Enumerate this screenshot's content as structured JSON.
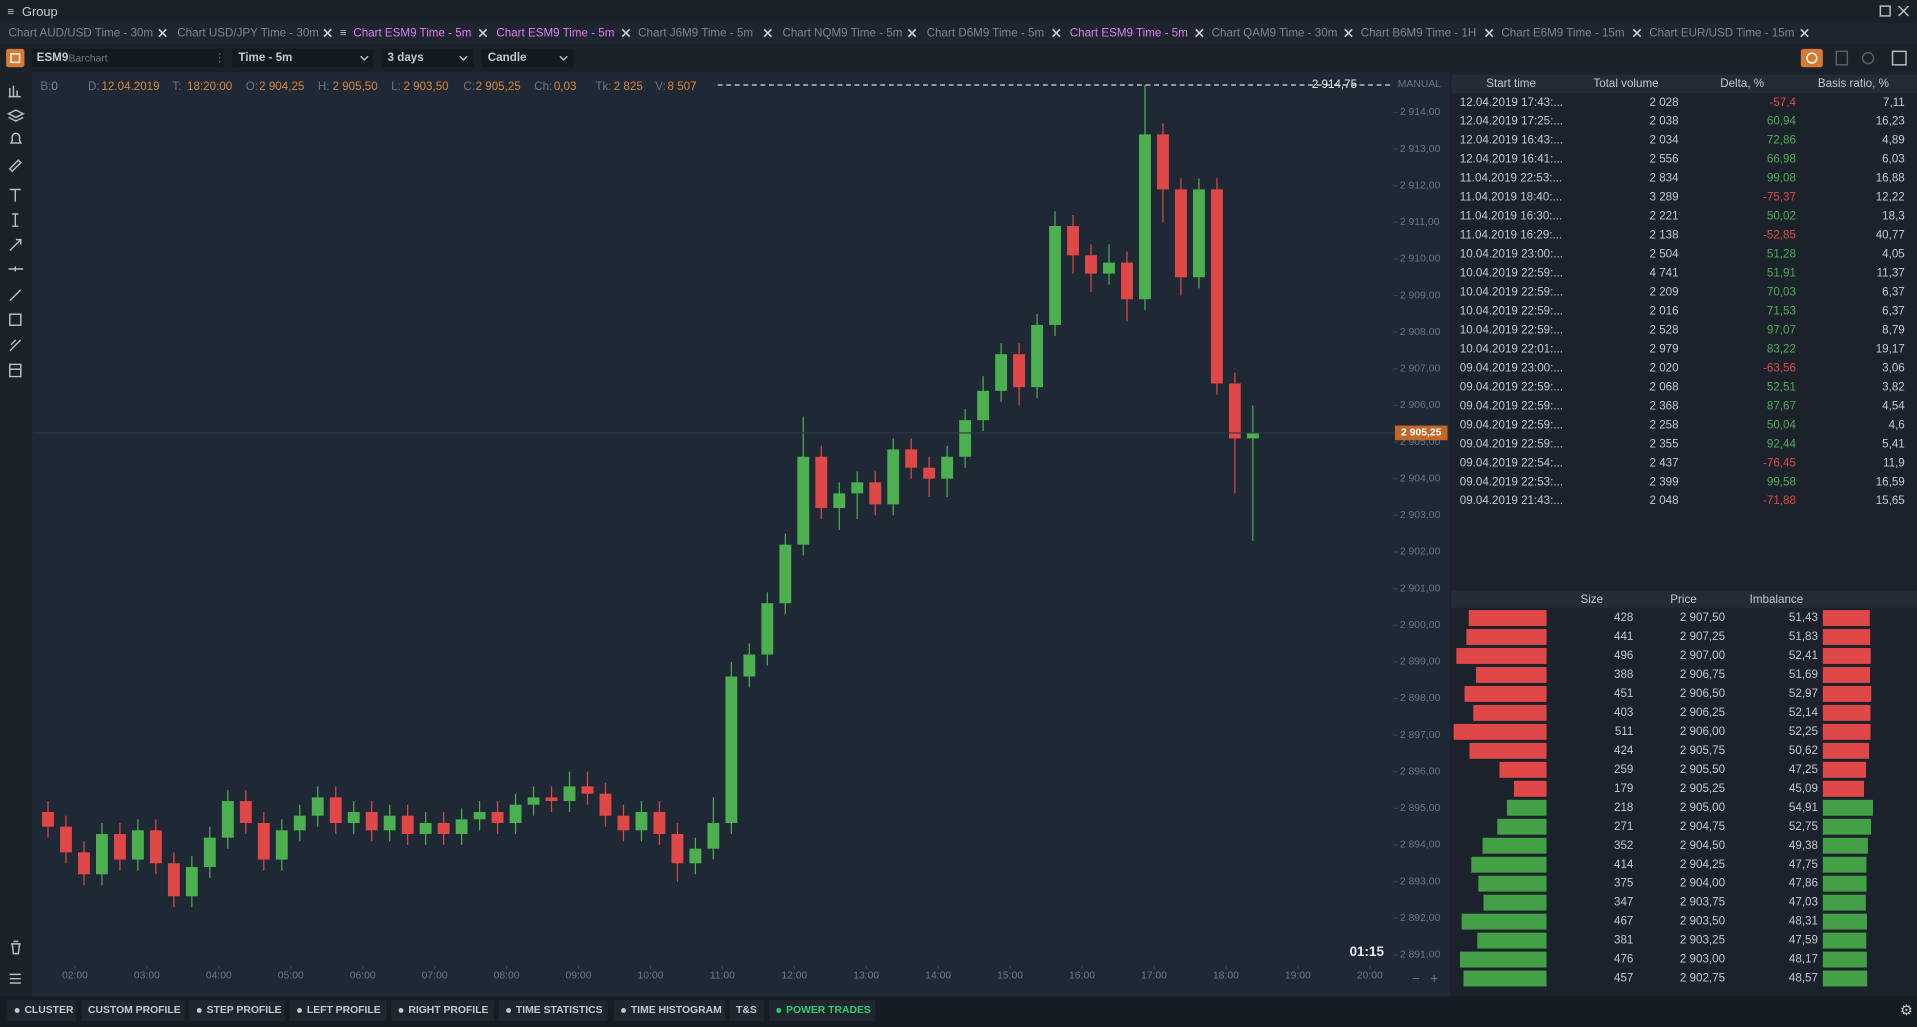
{
  "window": {
    "title": "Group"
  },
  "tabs": {
    "highlight_color": "#e07cf0",
    "items": [
      {
        "label": "Chart AUD/USD Time - 30m",
        "highlighted": false
      },
      {
        "label": "Chart USD/JPY Time - 30m",
        "highlighted": false
      },
      {
        "label": "Chart ESM9 Time - 5m",
        "highlighted": true
      },
      {
        "label": "Chart ESM9 Time - 5m",
        "highlighted": true
      },
      {
        "label": "Chart J6M9 Time - 5m",
        "highlighted": false
      },
      {
        "label": "Chart NQM9 Time - 5m",
        "highlighted": false
      },
      {
        "label": "Chart D6M9 Time - 5m",
        "highlighted": false
      },
      {
        "label": "Chart ESM9 Time - 5m",
        "highlighted": true
      },
      {
        "label": "Chart QAM9 Time - 30m",
        "highlighted": false
      },
      {
        "label": "Chart B6M9 Time - 1H",
        "highlighted": false
      },
      {
        "label": "Chart E6M9 Time - 15m",
        "highlighted": false
      },
      {
        "label": "Chart EUR/USD Time - 15m",
        "highlighted": false
      }
    ]
  },
  "toolbar": {
    "symbol": "ESM9",
    "source": "Barchart",
    "timeframe": "Time - 5m",
    "period": "3 days",
    "chart_type": "Candle"
  },
  "info_bar": [
    {
      "label": "B:",
      "value": "0"
    },
    {
      "label": "D:",
      "value": "12.04.2019"
    },
    {
      "label": "T:",
      "value": "18:20:00"
    },
    {
      "label": "O:",
      "value": "2 904,25"
    },
    {
      "label": "H:",
      "value": "2 905,50"
    },
    {
      "label": "L:",
      "value": "2 903,50"
    },
    {
      "label": "C:",
      "value": "2 905,25"
    },
    {
      "label": "Ch:",
      "value": "0,03"
    },
    {
      "label": "Tk:",
      "value": "2 825"
    },
    {
      "label": "V:",
      "value": "8 507"
    }
  ],
  "chart_data": {
    "type": "candlestick",
    "up_color": "#4caf50",
    "down_color": "#e04848",
    "ylim": [
      2890.7,
      2915.0
    ],
    "xlim": [
      "01:25",
      "20:20"
    ],
    "yticks": [
      {
        "value": 2891,
        "label": "2 891,00"
      },
      {
        "value": 2892,
        "label": "2 892,00"
      },
      {
        "value": 2893,
        "label": "2 893,00"
      },
      {
        "value": 2894,
        "label": "2 894,00"
      },
      {
        "value": 2895,
        "label": "2 895,00"
      },
      {
        "value": 2896,
        "label": "2 896,00"
      },
      {
        "value": 2897,
        "label": "2 897,00"
      },
      {
        "value": 2898,
        "label": "2 898,00"
      },
      {
        "value": 2899,
        "label": "2 899,00"
      },
      {
        "value": 2900,
        "label": "2 900,00"
      },
      {
        "value": 2901,
        "label": "2 901,00"
      },
      {
        "value": 2902,
        "label": "2 902,00"
      },
      {
        "value": 2903,
        "label": "2 903,00"
      },
      {
        "value": 2904,
        "label": "2 904,00"
      },
      {
        "value": 2905,
        "label": "2 905,00"
      },
      {
        "value": 2906,
        "label": "2 906,00"
      },
      {
        "value": 2907,
        "label": "2 907,00"
      },
      {
        "value": 2908,
        "label": "2 908,00"
      },
      {
        "value": 2909,
        "label": "2 909,00"
      },
      {
        "value": 2910,
        "label": "2 910,00"
      },
      {
        "value": 2911,
        "label": "2 911,00"
      },
      {
        "value": 2912,
        "label": "2 912,00"
      },
      {
        "value": 2913,
        "label": "2 913,00"
      },
      {
        "value": 2914,
        "label": "2 914,00"
      }
    ],
    "xticks": [
      "02:00",
      "03:00",
      "04:00",
      "05:00",
      "06:00",
      "07:00",
      "08:00",
      "09:00",
      "10:00",
      "11:00",
      "12:00",
      "13:00",
      "14:00",
      "15:00",
      "16:00",
      "17:00",
      "18:00",
      "19:00",
      "20:00"
    ],
    "x": [
      "01:30",
      "01:45",
      "02:00",
      "02:15",
      "02:30",
      "02:45",
      "03:00",
      "03:15",
      "03:30",
      "03:45",
      "04:00",
      "04:15",
      "04:30",
      "04:45",
      "05:00",
      "05:15",
      "05:30",
      "05:45",
      "06:00",
      "06:15",
      "06:30",
      "06:45",
      "07:00",
      "07:15",
      "07:30",
      "07:45",
      "08:00",
      "08:15",
      "08:30",
      "08:45",
      "09:00",
      "09:15",
      "09:30",
      "09:45",
      "10:00",
      "10:15",
      "10:30",
      "10:45",
      "11:00",
      "11:15",
      "11:30",
      "11:45",
      "12:00",
      "12:15",
      "12:30",
      "12:45",
      "13:00",
      "13:15",
      "13:30",
      "13:45",
      "14:00",
      "14:15",
      "14:30",
      "14:45",
      "15:00",
      "15:15",
      "15:30",
      "15:45",
      "16:00",
      "16:15",
      "16:30",
      "16:45",
      "17:00",
      "17:15",
      "17:30",
      "17:45",
      "18:00",
      "18:15"
    ],
    "open": [
      2894.9,
      2894.5,
      2893.8,
      2893.2,
      2894.3,
      2893.6,
      2894.4,
      2893.5,
      2892.6,
      2893.4,
      2894.2,
      2895.2,
      2894.6,
      2893.6,
      2894.4,
      2894.8,
      2895.3,
      2894.6,
      2894.9,
      2894.4,
      2894.8,
      2894.3,
      2894.6,
      2894.3,
      2894.7,
      2894.9,
      2894.6,
      2895.1,
      2895.3,
      2895.2,
      2895.6,
      2895.4,
      2894.8,
      2894.4,
      2894.9,
      2894.3,
      2893.5,
      2893.9,
      2894.6,
      2898.6,
      2899.2,
      2900.6,
      2902.2,
      2904.6,
      2903.2,
      2903.6,
      2903.9,
      2903.3,
      2904.8,
      2904.3,
      2904.0,
      2904.6,
      2905.6,
      2906.4,
      2907.4,
      2906.5,
      2908.2,
      2910.9,
      2910.1,
      2909.6,
      2909.9,
      2908.9,
      2913.4,
      2911.9,
      2909.5,
      2911.9,
      2906.6,
      2905.1
    ],
    "high": [
      2895.2,
      2894.8,
      2894.1,
      2894.6,
      2894.6,
      2894.7,
      2894.7,
      2893.8,
      2893.7,
      2894.5,
      2895.5,
      2895.5,
      2894.9,
      2894.7,
      2895.1,
      2895.6,
      2895.6,
      2895.2,
      2895.2,
      2895.1,
      2895.1,
      2894.9,
      2894.9,
      2895.0,
      2895.2,
      2895.2,
      2895.4,
      2895.6,
      2895.6,
      2896.0,
      2896.0,
      2895.7,
      2895.1,
      2895.2,
      2895.2,
      2894.6,
      2894.2,
      2895.3,
      2899.0,
      2899.5,
      2900.9,
      2902.5,
      2905.7,
      2904.9,
      2903.9,
      2904.2,
      2904.2,
      2905.1,
      2905.1,
      2904.6,
      2904.9,
      2905.9,
      2906.8,
      2907.7,
      2907.7,
      2908.5,
      2911.3,
      2911.2,
      2910.4,
      2910.4,
      2910.2,
      2914.75,
      2913.7,
      2912.2,
      2912.2,
      2912.2,
      2906.9,
      2906.0
    ],
    "low": [
      2894.2,
      2893.5,
      2892.9,
      2892.9,
      2893.3,
      2893.3,
      2893.2,
      2892.3,
      2892.3,
      2893.1,
      2893.9,
      2894.3,
      2893.3,
      2893.3,
      2894.1,
      2894.5,
      2894.3,
      2894.3,
      2894.1,
      2894.1,
      2894.0,
      2894.0,
      2894.0,
      2894.0,
      2894.4,
      2894.3,
      2894.3,
      2894.8,
      2894.9,
      2894.9,
      2895.1,
      2894.5,
      2894.1,
      2894.1,
      2894.0,
      2893.0,
      2893.2,
      2893.6,
      2894.3,
      2898.3,
      2898.9,
      2900.3,
      2901.9,
      2902.9,
      2902.6,
      2902.9,
      2903.0,
      2903.0,
      2904.0,
      2903.5,
      2903.5,
      2904.3,
      2905.3,
      2906.1,
      2906.0,
      2906.2,
      2907.9,
      2909.6,
      2909.1,
      2909.3,
      2908.3,
      2908.6,
      2911.0,
      2909.0,
      2909.2,
      2906.3,
      2903.6,
      2902.3
    ],
    "close": [
      2894.5,
      2893.8,
      2893.2,
      2894.3,
      2893.6,
      2894.4,
      2893.5,
      2892.6,
      2893.4,
      2894.2,
      2895.2,
      2894.6,
      2893.6,
      2894.4,
      2894.8,
      2895.3,
      2894.6,
      2894.9,
      2894.4,
      2894.8,
      2894.3,
      2894.6,
      2894.3,
      2894.7,
      2894.9,
      2894.6,
      2895.1,
      2895.3,
      2895.2,
      2895.6,
      2895.4,
      2894.8,
      2894.4,
      2894.9,
      2894.3,
      2893.5,
      2893.9,
      2894.6,
      2898.6,
      2899.2,
      2900.6,
      2902.2,
      2904.6,
      2903.2,
      2903.6,
      2903.9,
      2903.3,
      2904.8,
      2904.3,
      2904.0,
      2904.6,
      2905.6,
      2906.4,
      2907.4,
      2906.5,
      2908.2,
      2910.9,
      2910.1,
      2909.6,
      2909.9,
      2908.9,
      2913.4,
      2911.9,
      2909.5,
      2911.9,
      2906.6,
      2905.1,
      2905.25
    ],
    "last_price": {
      "value": 2905.25,
      "label": "2 905,25"
    },
    "high_marker": {
      "value": 2914.75,
      "label": "2 914,75"
    },
    "scale_mode": "MANUAL",
    "timer": "01:15"
  },
  "trades_table": {
    "columns": [
      "Start time",
      "Total volume",
      "Delta, %",
      "Basis ratio, %"
    ],
    "rows": [
      [
        "12.04.2019 17:43:...",
        "2 028",
        "-57,4",
        "7,11"
      ],
      [
        "12.04.2019 17:25:...",
        "2 038",
        "60,94",
        "16,23"
      ],
      [
        "12.04.2019 16:43:...",
        "2 034",
        "72,86",
        "4,89"
      ],
      [
        "12.04.2019 16:41:...",
        "2 556",
        "66,98",
        "6,03"
      ],
      [
        "11.04.2019 22:53:...",
        "2 834",
        "99,08",
        "16,88"
      ],
      [
        "11.04.2019 18:40:...",
        "3 289",
        "-75,37",
        "12,22"
      ],
      [
        "11.04.2019 16:30:...",
        "2 221",
        "50,02",
        "18,3"
      ],
      [
        "11.04.2019 16:29:...",
        "2 138",
        "-52,85",
        "40,77"
      ],
      [
        "10.04.2019 23:00:...",
        "2 504",
        "51,28",
        "4,05"
      ],
      [
        "10.04.2019 22:59:...",
        "4 741",
        "51,91",
        "11,37"
      ],
      [
        "10.04.2019 22:59:...",
        "2 209",
        "70,03",
        "6,37"
      ],
      [
        "10.04.2019 22:59:...",
        "2 016",
        "71,53",
        "6,37"
      ],
      [
        "10.04.2019 22:59:...",
        "2 528",
        "97,07",
        "8,79"
      ],
      [
        "10.04.2019 22:01:...",
        "2 979",
        "83,22",
        "19,17"
      ],
      [
        "09.04.2019 23:00:...",
        "2 020",
        "-63,56",
        "3,06"
      ],
      [
        "09.04.2019 22:59:...",
        "2 068",
        "52,51",
        "3,82"
      ],
      [
        "09.04.2019 22:59:...",
        "2 368",
        "87,67",
        "4,54"
      ],
      [
        "09.04.2019 22:59:...",
        "2 258",
        "50,04",
        "4,6"
      ],
      [
        "09.04.2019 22:59:...",
        "2 355",
        "92,44",
        "5,41"
      ],
      [
        "09.04.2019 22:54:...",
        "2 437",
        "-76,45",
        "11,9"
      ],
      [
        "09.04.2019 22:53:...",
        "2 399",
        "99,58",
        "16,59"
      ],
      [
        "09.04.2019 21:43:...",
        "2 048",
        "-71,88",
        "15,65"
      ]
    ]
  },
  "order_book": {
    "columns": [
      "Size",
      "Price",
      "Imbalance"
    ],
    "rows": [
      {
        "size": 428,
        "price": "2 907,50",
        "imbalance": {
          "value": 51.43,
          "label": "51,43"
        },
        "color": "#e04848"
      },
      {
        "size": 441,
        "price": "2 907,25",
        "imbalance": {
          "value": 51.83,
          "label": "51,83"
        },
        "color": "#e04848"
      },
      {
        "size": 496,
        "price": "2 907,00",
        "imbalance": {
          "value": 52.41,
          "label": "52,41"
        },
        "color": "#e04848"
      },
      {
        "size": 388,
        "price": "2 906,75",
        "imbalance": {
          "value": 51.69,
          "label": "51,69"
        },
        "color": "#e04848"
      },
      {
        "size": 451,
        "price": "2 906,50",
        "imbalance": {
          "value": 52.97,
          "label": "52,97"
        },
        "color": "#e04848"
      },
      {
        "size": 403,
        "price": "2 906,25",
        "imbalance": {
          "value": 52.14,
          "label": "52,14"
        },
        "color": "#e04848"
      },
      {
        "size": 511,
        "price": "2 906,00",
        "imbalance": {
          "value": 52.25,
          "label": "52,25"
        },
        "color": "#e04848"
      },
      {
        "size": 424,
        "price": "2 905,75",
        "imbalance": {
          "value": 50.62,
          "label": "50,62"
        },
        "color": "#e04848"
      },
      {
        "size": 259,
        "price": "2 905,50",
        "imbalance": {
          "value": 47.25,
          "label": "47,25"
        },
        "color": "#e04848"
      },
      {
        "size": 179,
        "price": "2 905,25",
        "imbalance": {
          "value": 45.09,
          "label": "45,09"
        },
        "color": "#e04848"
      },
      {
        "size": 218,
        "price": "2 905,00",
        "imbalance": {
          "value": 54.91,
          "label": "54,91"
        },
        "color": "#43a047"
      },
      {
        "size": 271,
        "price": "2 904,75",
        "imbalance": {
          "value": 52.75,
          "label": "52,75"
        },
        "color": "#43a047"
      },
      {
        "size": 352,
        "price": "2 904,50",
        "imbalance": {
          "value": 49.38,
          "label": "49,38"
        },
        "color": "#43a047"
      },
      {
        "size": 414,
        "price": "2 904,25",
        "imbalance": {
          "value": 47.75,
          "label": "47,75"
        },
        "color": "#43a047"
      },
      {
        "size": 375,
        "price": "2 904,00",
        "imbalance": {
          "value": 47.86,
          "label": "47,86"
        },
        "color": "#43a047"
      },
      {
        "size": 347,
        "price": "2 903,75",
        "imbalance": {
          "value": 47.03,
          "label": "47,03"
        },
        "color": "#43a047"
      },
      {
        "size": 467,
        "price": "2 903,50",
        "imbalance": {
          "value": 48.31,
          "label": "48,31"
        },
        "color": "#43a047"
      },
      {
        "size": 381,
        "price": "2 903,25",
        "imbalance": {
          "value": 47.59,
          "label": "47,59"
        },
        "color": "#43a047"
      },
      {
        "size": 476,
        "price": "2 903,00",
        "imbalance": {
          "value": 48.17,
          "label": "48,17"
        },
        "color": "#43a047"
      },
      {
        "size": 457,
        "price": "2 902,75",
        "imbalance": {
          "value": 48.57,
          "label": "48,57"
        },
        "color": "#43a047"
      }
    ]
  },
  "bottom_bar": {
    "active_color": "#2ecc71",
    "buttons": [
      {
        "label": "CLUSTER",
        "active": false
      },
      {
        "label": "CUSTOM PROFILE",
        "active": false
      },
      {
        "label": "STEP PROFILE",
        "active": false
      },
      {
        "label": "LEFT PROFILE",
        "active": false
      },
      {
        "label": "RIGHT PROFILE",
        "active": false
      },
      {
        "label": "TIME STATISTICS",
        "active": false
      },
      {
        "label": "TIME HISTOGRAM",
        "active": false
      },
      {
        "label": "T&S",
        "active": false
      },
      {
        "label": "POWER TRADES",
        "active": true
      }
    ]
  }
}
